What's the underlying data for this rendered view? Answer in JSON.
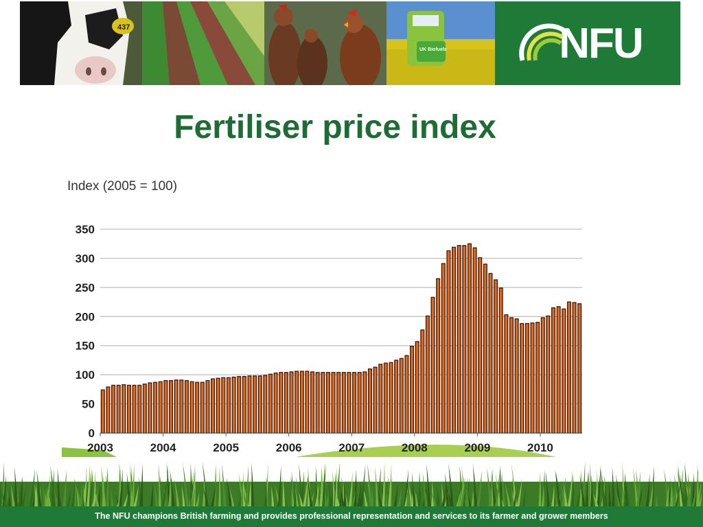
{
  "header": {
    "logo_text": "NFU",
    "cow_tag": "437",
    "biofuel_sign": "UK Biofuels",
    "colors": {
      "brand_green": "#1f7a37",
      "title_green": "#1e6b35",
      "bar_fill": "#e0691c",
      "bar_edge": "#3a1a0c"
    }
  },
  "slide": {
    "title": "Fertiliser price index",
    "footer": "The NFU champions British farming and provides professional representation and services to its farmer and grower members"
  },
  "chart_data": {
    "type": "bar",
    "ylabel": "Index (2005 = 100)",
    "ylim": [
      0,
      350
    ],
    "yticks": [
      0,
      50,
      100,
      150,
      200,
      250,
      300,
      350
    ],
    "grid": true,
    "x_tick_labels": [
      "2003",
      "2004",
      "2005",
      "2006",
      "2007",
      "2008",
      "2009",
      "2010"
    ],
    "bars_per_year": 12,
    "values": [
      74,
      79,
      82,
      82,
      83,
      82,
      82,
      82,
      84,
      86,
      87,
      88,
      90,
      90,
      91,
      91,
      90,
      88,
      87,
      87,
      90,
      93,
      94,
      95,
      95,
      96,
      97,
      97,
      98,
      98,
      98,
      99,
      101,
      103,
      104,
      104,
      105,
      106,
      106,
      106,
      105,
      104,
      104,
      104,
      104,
      104,
      104,
      104,
      104,
      104,
      105,
      110,
      113,
      118,
      120,
      121,
      125,
      128,
      133,
      149,
      157,
      177,
      201,
      233,
      265,
      291,
      313,
      319,
      322,
      322,
      325,
      318,
      301,
      290,
      274,
      263,
      249,
      203,
      198,
      196,
      188,
      188,
      189,
      190,
      198,
      201,
      215,
      217,
      213,
      225,
      224,
      222
    ]
  }
}
